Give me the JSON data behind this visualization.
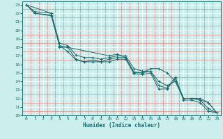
{
  "title": "",
  "xlabel": "Humidex (Indice chaleur)",
  "bg_color": "#cceeed",
  "line_color": "#1a6b6b",
  "grid_major_color": "#ffffff",
  "grid_minor_color": "#e88888",
  "xlim": [
    -0.5,
    23.5
  ],
  "ylim": [
    10,
    23.4
  ],
  "xticks": [
    0,
    1,
    2,
    3,
    4,
    5,
    6,
    7,
    8,
    9,
    10,
    11,
    12,
    13,
    14,
    15,
    16,
    17,
    18,
    19,
    20,
    21,
    22,
    23
  ],
  "yticks": [
    10,
    11,
    12,
    13,
    14,
    15,
    16,
    17,
    18,
    19,
    20,
    21,
    22,
    23
  ],
  "lines": [
    {
      "x": [
        0,
        1,
        3,
        4,
        4,
        5,
        6,
        7,
        8,
        9,
        10,
        11,
        12,
        13,
        14,
        15,
        16,
        17,
        18,
        19,
        20,
        21,
        22,
        23
      ],
      "y": [
        23,
        22,
        21.7,
        18.2,
        18,
        18,
        16.6,
        16.3,
        16.5,
        16.3,
        16.3,
        16.6,
        16.6,
        14.9,
        14.8,
        15.0,
        13.1,
        13.1,
        14.3,
        11.8,
        11.8,
        11.5,
        10.5,
        10.3
      ]
    },
    {
      "x": [
        0,
        3,
        4,
        10,
        11,
        12,
        13,
        14,
        15,
        16,
        17,
        18,
        19,
        20,
        21,
        22,
        23
      ],
      "y": [
        23,
        22,
        18.2,
        17.0,
        17.2,
        16.8,
        15.0,
        15.0,
        15.5,
        15.5,
        15.0,
        14.0,
        12.0,
        12.0,
        11.8,
        11.5,
        10.3
      ]
    },
    {
      "x": [
        0,
        1,
        3,
        4,
        5,
        6,
        7,
        8,
        9,
        10,
        11,
        12,
        13,
        14,
        15,
        16,
        17,
        18,
        19,
        20,
        21,
        22,
        23
      ],
      "y": [
        23,
        22,
        21.8,
        18.2,
        17.5,
        16.5,
        16.3,
        16.3,
        16.3,
        16.6,
        16.8,
        16.8,
        15.1,
        15.0,
        15.2,
        13.5,
        13.2,
        14.5,
        12.0,
        12.0,
        11.8,
        10.8,
        10.3
      ]
    },
    {
      "x": [
        0,
        1,
        3,
        4,
        5,
        6,
        7,
        8,
        9,
        10,
        11,
        12,
        13,
        14,
        15,
        16,
        17,
        18,
        19,
        20,
        21,
        22,
        23
      ],
      "y": [
        23,
        22.2,
        22.0,
        18.5,
        18.2,
        17.1,
        16.8,
        16.8,
        16.6,
        16.8,
        17.0,
        17.0,
        15.5,
        15.2,
        15.2,
        14.0,
        13.5,
        14.0,
        12.0,
        12.0,
        12.0,
        11.5,
        10.3
      ]
    }
  ]
}
